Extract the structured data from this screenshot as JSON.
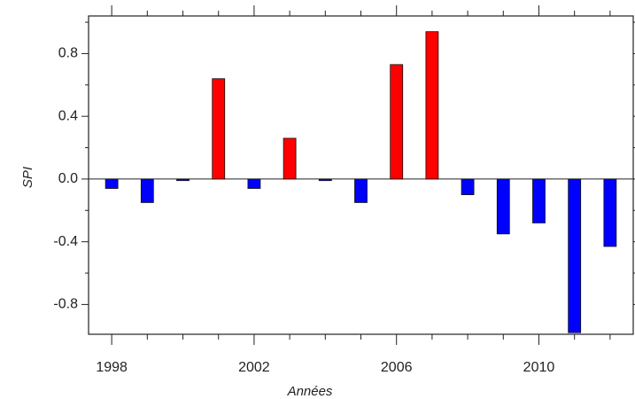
{
  "chart_data": {
    "type": "bar",
    "x": [
      1998,
      1999,
      2000,
      2001,
      2002,
      2003,
      2004,
      2005,
      2006,
      2007,
      2008,
      2009,
      2010,
      2011,
      2012
    ],
    "values": [
      -0.06,
      -0.15,
      -0.01,
      0.64,
      -0.06,
      0.26,
      -0.01,
      -0.15,
      0.73,
      0.94,
      -0.1,
      -0.35,
      -0.28,
      -0.98,
      -0.43
    ],
    "positive_color": "#ff0000",
    "negative_color": "#0000ff",
    "xlabel": "Années",
    "ylabel": "SPI",
    "xlim": [
      1997.35,
      2012.65
    ],
    "xticks": [
      1998,
      2002,
      2006,
      2010
    ],
    "xminorticks": [
      1999,
      2000,
      2001,
      2003,
      2004,
      2005,
      2007,
      2008,
      2009,
      2011,
      2012
    ],
    "ylim": [
      -0.99,
      1.04
    ],
    "yticks": [
      -0.8,
      -0.4,
      {
        "value": 0,
        "label": "0.0"
      },
      0.4,
      0.8
    ],
    "yminorticks": [
      -0.6,
      -0.2,
      0.2,
      0.6,
      1.0
    ]
  }
}
